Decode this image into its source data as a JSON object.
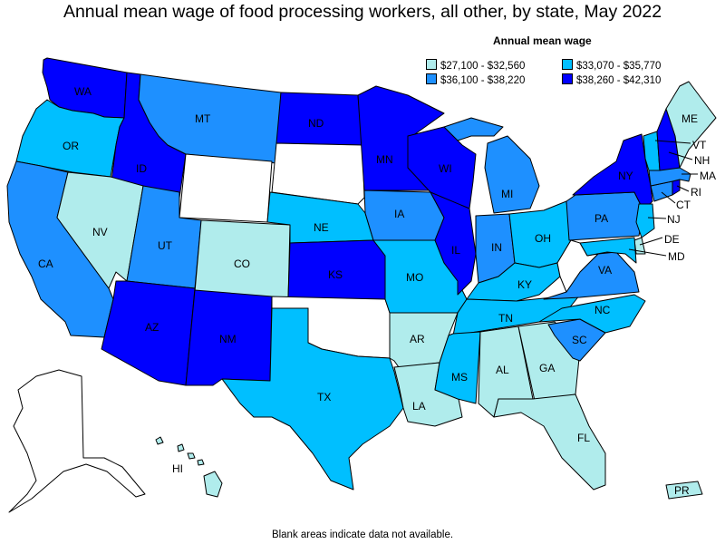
{
  "title": "Annual mean wage of food processing workers, all other, by state, May 2022",
  "legend": {
    "title": "Annual mean wage",
    "items": [
      {
        "label": "$27,100 - $32,560",
        "color": "#b0ecec"
      },
      {
        "label": "$33,070 - $35,770",
        "color": "#00bfff"
      },
      {
        "label": "$36,100 - $38,220",
        "color": "#1e90ff"
      },
      {
        "label": "$38,260 - $42,310",
        "color": "#0000ff"
      }
    ]
  },
  "footnote": "Blank areas indicate data not available.",
  "colors": {
    "no_data": "#ffffff",
    "border": "#000000"
  },
  "states": [
    {
      "abbr": "WA",
      "bin": 3
    },
    {
      "abbr": "OR",
      "bin": 1
    },
    {
      "abbr": "CA",
      "bin": 2
    },
    {
      "abbr": "ID",
      "bin": 3
    },
    {
      "abbr": "NV",
      "bin": 0
    },
    {
      "abbr": "MT",
      "bin": 2
    },
    {
      "abbr": "WY",
      "bin": null
    },
    {
      "abbr": "UT",
      "bin": 2
    },
    {
      "abbr": "AZ",
      "bin": 3
    },
    {
      "abbr": "CO",
      "bin": 0
    },
    {
      "abbr": "NM",
      "bin": 3
    },
    {
      "abbr": "ND",
      "bin": 3
    },
    {
      "abbr": "SD",
      "bin": null
    },
    {
      "abbr": "NE",
      "bin": 1
    },
    {
      "abbr": "KS",
      "bin": 3
    },
    {
      "abbr": "OK",
      "bin": null
    },
    {
      "abbr": "TX",
      "bin": 1
    },
    {
      "abbr": "MN",
      "bin": 3
    },
    {
      "abbr": "IA",
      "bin": 2
    },
    {
      "abbr": "MO",
      "bin": 1
    },
    {
      "abbr": "AR",
      "bin": 0
    },
    {
      "abbr": "LA",
      "bin": 0
    },
    {
      "abbr": "WI",
      "bin": 3
    },
    {
      "abbr": "IL",
      "bin": 3
    },
    {
      "abbr": "MI",
      "bin": 2
    },
    {
      "abbr": "IN",
      "bin": 2
    },
    {
      "abbr": "OH",
      "bin": 1
    },
    {
      "abbr": "KY",
      "bin": 1
    },
    {
      "abbr": "TN",
      "bin": 1
    },
    {
      "abbr": "MS",
      "bin": 1
    },
    {
      "abbr": "AL",
      "bin": 0
    },
    {
      "abbr": "GA",
      "bin": 0
    },
    {
      "abbr": "FL",
      "bin": 0
    },
    {
      "abbr": "SC",
      "bin": 2
    },
    {
      "abbr": "NC",
      "bin": 1
    },
    {
      "abbr": "VA",
      "bin": 2
    },
    {
      "abbr": "WV",
      "bin": null
    },
    {
      "abbr": "PA",
      "bin": 2
    },
    {
      "abbr": "NY",
      "bin": 3
    },
    {
      "abbr": "NJ",
      "bin": 1
    },
    {
      "abbr": "DE",
      "bin": 0
    },
    {
      "abbr": "MD",
      "bin": 1
    },
    {
      "abbr": "CT",
      "bin": 2
    },
    {
      "abbr": "RI",
      "bin": 3
    },
    {
      "abbr": "MA",
      "bin": 2
    },
    {
      "abbr": "VT",
      "bin": 1
    },
    {
      "abbr": "NH",
      "bin": 3
    },
    {
      "abbr": "ME",
      "bin": 0
    },
    {
      "abbr": "AK",
      "bin": null
    },
    {
      "abbr": "HI",
      "bin": 0
    },
    {
      "abbr": "PR",
      "bin": 0
    }
  ]
}
